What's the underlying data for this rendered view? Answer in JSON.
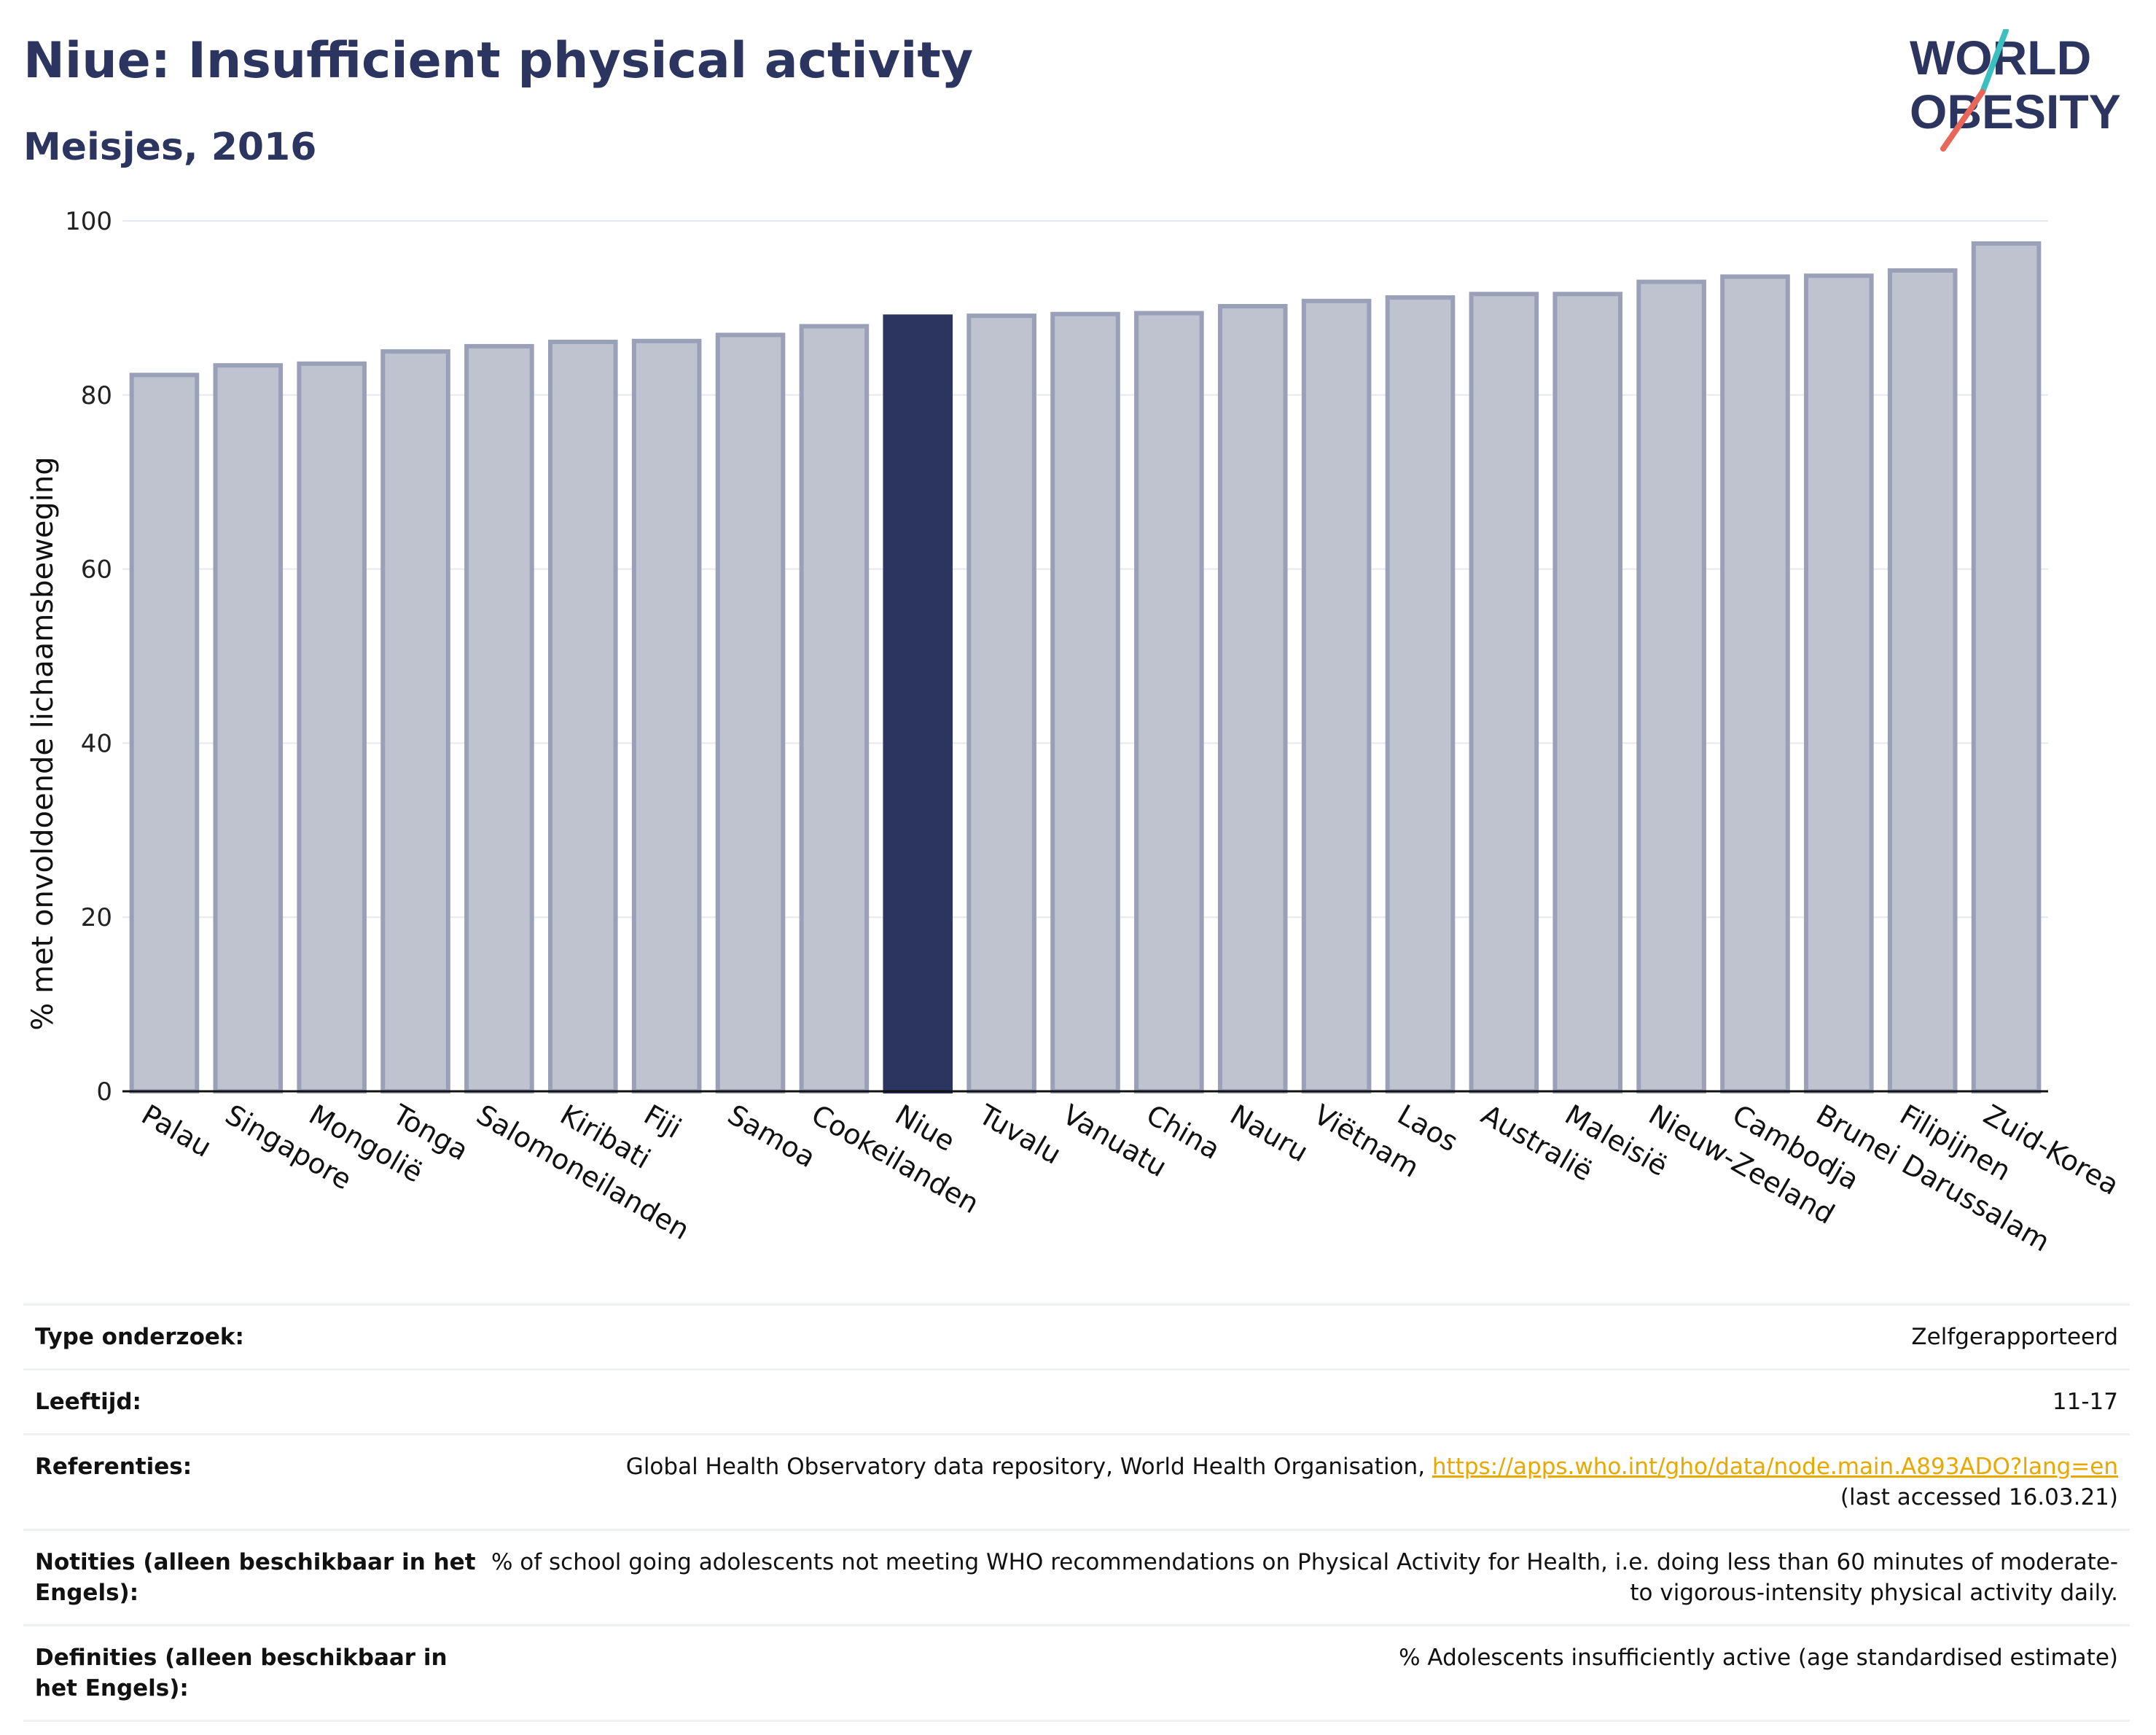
{
  "header": {
    "title": "Niue: Insufficient physical activity",
    "subtitle": "Meisjes, 2016"
  },
  "logo": {
    "line1": "WORLD",
    "line2": "OBESITY",
    "colors": {
      "text": "#2b3560",
      "slash_teal": "#3cbfbf",
      "slash_coral": "#e8665a"
    }
  },
  "colors": {
    "bar_fill": "#bfc3d0",
    "bar_stroke": "#9aa0b8",
    "highlight": "#2b3560",
    "grid": "#e6e8ef"
  },
  "chart_data": {
    "type": "bar",
    "title": "Niue: Insufficient physical activity",
    "subtitle": "Meisjes, 2016",
    "xlabel": "",
    "ylabel": "% met onvoldoende lichaamsbeweging",
    "ylim": [
      0,
      100
    ],
    "yticks": [
      0,
      20,
      40,
      60,
      80,
      100
    ],
    "grid": true,
    "highlight": "Niue",
    "categories": [
      "Palau",
      "Singapore",
      "Mongolië",
      "Tonga",
      "Salomoneilanden",
      "Kiribati",
      "Fiji",
      "Samoa",
      "Cookeilanden",
      "Niue",
      "Tuvalu",
      "Vanuatu",
      "China",
      "Nauru",
      "Viëtnam",
      "Laos",
      "Australië",
      "Maleisië",
      "Nieuw-Zeeland",
      "Cambodja",
      "Brunei Darussalam",
      "Filipijnen",
      "Zuid-Korea"
    ],
    "values": [
      82.3,
      83.4,
      83.6,
      85.0,
      85.6,
      86.1,
      86.2,
      86.9,
      87.9,
      89.0,
      89.1,
      89.3,
      89.4,
      90.2,
      90.8,
      91.2,
      91.6,
      91.6,
      93.0,
      93.6,
      93.7,
      94.3,
      97.4
    ]
  },
  "meta": {
    "rows": [
      {
        "key": "Type onderzoek:",
        "value": "Zelfgerapporteerd"
      },
      {
        "key": "Leeftijd:",
        "value": "11-17"
      },
      {
        "key": "Referenties:",
        "value": "Global Health Observatory data repository, World Health Organisation,",
        "link": "https://apps.who.int/gho/data/node.main.A893ADO?lang=en",
        "value2": "(last accessed 16.03.21)"
      },
      {
        "key": "Notities (alleen beschikbaar in het Engels):",
        "value": "% of school going adolescents not meeting WHO recommendations on Physical Activity for Health, i.e. doing less than 60 minutes of moderate- to vigorous-intensity physical activity daily."
      },
      {
        "key": "Definities (alleen beschikbaar in het Engels):",
        "value": "% Adolescents insufficiently active (age standardised estimate)"
      }
    ]
  }
}
